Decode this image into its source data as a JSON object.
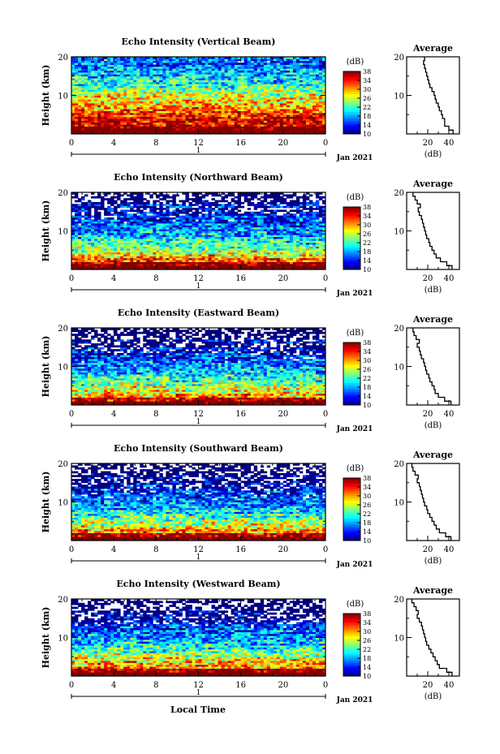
{
  "chart_data": {
    "type": "heatmap",
    "panels": [
      {
        "title": "Echo Intensity (Vertical Beam)",
        "profile": [
          44,
          40,
          36,
          36,
          34,
          33,
          31,
          30,
          28,
          27,
          26,
          24,
          22,
          21,
          20,
          19,
          18,
          17,
          16,
          17
        ]
      },
      {
        "title": "Echo Intensity (Northward Beam)",
        "profile": [
          43,
          38,
          32,
          28,
          26,
          24,
          22,
          21,
          19,
          18,
          17,
          16,
          15,
          14,
          12,
          11,
          13,
          10,
          8,
          6
        ]
      },
      {
        "title": "Echo Intensity (Eastward Beam)",
        "profile": [
          42,
          36,
          30,
          27,
          26,
          24,
          22,
          21,
          19,
          18,
          17,
          16,
          14,
          13,
          12,
          10,
          12,
          9,
          7,
          6
        ]
      },
      {
        "title": "Echo Intensity (Southward Beam)",
        "profile": [
          42,
          37,
          31,
          28,
          26,
          24,
          22,
          20,
          19,
          17,
          16,
          15,
          14,
          13,
          12,
          10,
          11,
          8,
          6,
          5
        ]
      },
      {
        "title": "Echo Intensity (Westward Beam)",
        "profile": [
          43,
          38,
          31,
          29,
          27,
          25,
          23,
          21,
          19,
          18,
          17,
          16,
          15,
          14,
          12,
          10,
          11,
          9,
          7,
          5
        ]
      }
    ],
    "ylabel": "Height (km)",
    "ylim": [
      0,
      20
    ],
    "y_ticks": [
      "10",
      "20"
    ],
    "x_ticks": [
      "0",
      "4",
      "8",
      "12",
      "16",
      "20",
      "0"
    ],
    "xlim": [
      0,
      24
    ],
    "day_label": "1",
    "date_label": "Jan 2021",
    "xlabel": "Local Time",
    "colorbar": {
      "unit": "(dB)",
      "ticks": [
        "38",
        "34",
        "30",
        "26",
        "22",
        "18",
        "14",
        "10"
      ],
      "range": [
        10,
        38
      ]
    },
    "profile_title": "Average",
    "profile_xlabel": "(dB)",
    "profile_x_ticks": [
      "20",
      "40"
    ],
    "profile_xlim": [
      0,
      50
    ]
  }
}
